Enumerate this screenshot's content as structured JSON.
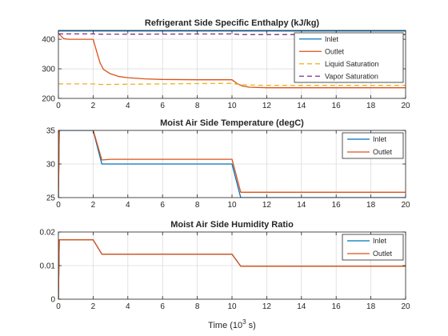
{
  "colors": {
    "blue": "#0072BD",
    "orange": "#D95319",
    "yellow": "#EDB120",
    "purple": "#7E2F8E",
    "grid": "#dcdcdc",
    "axis": "#262626"
  },
  "xlabel_main": "Time (10",
  "xlabel_exp": "3",
  "xlabel_tail": " s)",
  "chart_data": [
    {
      "type": "line",
      "title": "Refrigerant Side Specific Enthalpy (kJ/kg)",
      "xlim": [
        0,
        20
      ],
      "ylim": [
        200,
        430
      ],
      "xticks": [
        0,
        2,
        4,
        6,
        8,
        10,
        12,
        14,
        16,
        18,
        20
      ],
      "yticks": [
        200,
        300,
        400
      ],
      "grid": true,
      "legend_position": "top-right",
      "series": [
        {
          "name": "Inlet",
          "color": "blue",
          "dash": "solid",
          "points": [
            [
              0,
              428
            ],
            [
              20,
              428
            ]
          ]
        },
        {
          "name": "Outlet",
          "color": "orange",
          "dash": "solid",
          "points": [
            [
              0,
              420
            ],
            [
              0.3,
              402
            ],
            [
              0.6,
              400
            ],
            [
              2.0,
              400
            ],
            [
              2.2,
              360
            ],
            [
              2.4,
              320
            ],
            [
              2.6,
              298
            ],
            [
              3.0,
              283
            ],
            [
              3.5,
              274
            ],
            [
              4.0,
              270
            ],
            [
              5.0,
              266
            ],
            [
              6.0,
              264
            ],
            [
              8.0,
              263
            ],
            [
              10.0,
              263
            ],
            [
              10.3,
              250
            ],
            [
              10.6,
              242
            ],
            [
              11.0,
              238
            ],
            [
              12.0,
              236
            ],
            [
              16.0,
              236
            ],
            [
              20.0,
              236
            ]
          ]
        },
        {
          "name": "Liquid Saturation",
          "color": "yellow",
          "dash": "dashed",
          "points": [
            [
              0,
              249
            ],
            [
              2.0,
              249
            ],
            [
              2.5,
              247
            ],
            [
              4.0,
              248
            ],
            [
              6.0,
              249
            ],
            [
              8.0,
              250
            ],
            [
              10.0,
              251
            ],
            [
              10.5,
              246
            ],
            [
              12.0,
              244
            ],
            [
              16.0,
              244
            ],
            [
              20.0,
              244
            ]
          ]
        },
        {
          "name": "Vapor Saturation",
          "color": "purple",
          "dash": "dashed",
          "points": [
            [
              0,
              418
            ],
            [
              2.0,
              418
            ],
            [
              2.5,
              417
            ],
            [
              10.0,
              418
            ],
            [
              10.5,
              416
            ],
            [
              20.0,
              416
            ]
          ]
        }
      ]
    },
    {
      "type": "line",
      "title": "Moist Air Side Temperature (degC)",
      "xlim": [
        0,
        20
      ],
      "ylim": [
        25,
        35
      ],
      "xticks": [
        0,
        2,
        4,
        6,
        8,
        10,
        12,
        14,
        16,
        18,
        20
      ],
      "yticks": [
        25,
        30,
        35
      ],
      "grid": true,
      "legend_position": "top-right",
      "series": [
        {
          "name": "Inlet",
          "color": "blue",
          "dash": "solid",
          "points": [
            [
              0,
              25
            ],
            [
              0.05,
              35
            ],
            [
              2.0,
              35
            ],
            [
              2.5,
              30
            ],
            [
              10.0,
              30
            ],
            [
              10.5,
              25
            ],
            [
              20.0,
              25
            ]
          ]
        },
        {
          "name": "Outlet",
          "color": "orange",
          "dash": "solid",
          "points": [
            [
              0,
              25
            ],
            [
              0.05,
              35.1
            ],
            [
              2.0,
              35.1
            ],
            [
              2.5,
              30.6
            ],
            [
              3.0,
              30.7
            ],
            [
              10.0,
              30.7
            ],
            [
              10.5,
              25.8
            ],
            [
              20.0,
              25.8
            ]
          ]
        }
      ]
    },
    {
      "type": "line",
      "title": "Moist Air Side Humidity Ratio",
      "xlim": [
        0,
        20
      ],
      "ylim": [
        0,
        0.02
      ],
      "xticks": [
        0,
        2,
        4,
        6,
        8,
        10,
        12,
        14,
        16,
        18,
        20
      ],
      "yticks": [
        0,
        0.01,
        0.02
      ],
      "grid": true,
      "legend_position": "top-right",
      "series": [
        {
          "name": "Inlet",
          "color": "blue",
          "dash": "solid",
          "points": [
            [
              0,
              0
            ],
            [
              0.05,
              0.0177
            ],
            [
              2.0,
              0.0177
            ],
            [
              2.5,
              0.0134
            ],
            [
              10.0,
              0.0134
            ],
            [
              10.5,
              0.0098
            ],
            [
              20.0,
              0.0098
            ]
          ]
        },
        {
          "name": "Outlet",
          "color": "orange",
          "dash": "solid",
          "points": [
            [
              0,
              0
            ],
            [
              0.05,
              0.0177
            ],
            [
              2.0,
              0.0177
            ],
            [
              2.5,
              0.0134
            ],
            [
              10.0,
              0.0134
            ],
            [
              10.5,
              0.0098
            ],
            [
              20.0,
              0.0098
            ]
          ]
        }
      ]
    }
  ]
}
